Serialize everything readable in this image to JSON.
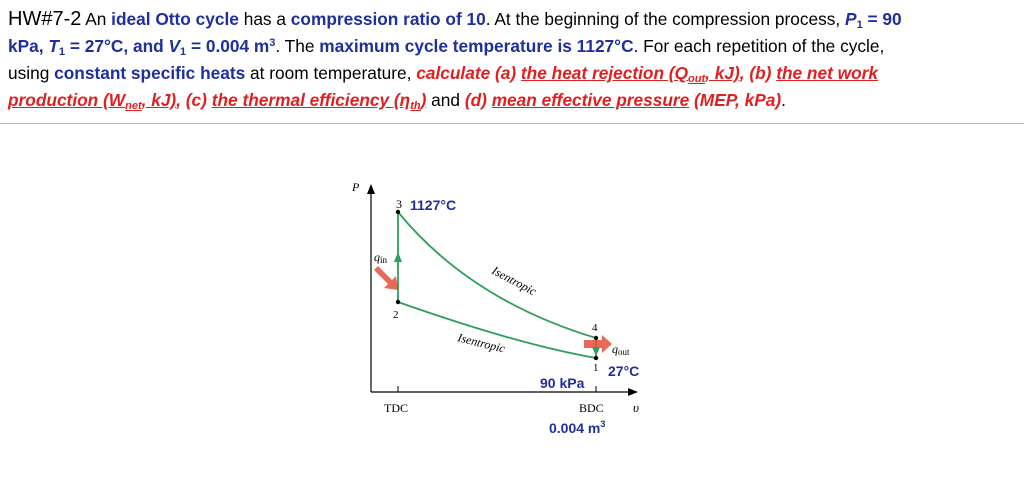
{
  "problem": {
    "heading": "HW#7-2",
    "line1": {
      "t1": " An ",
      "b1": "ideal Otto cycle",
      "t2": " has a ",
      "b2": "compression ratio of 10",
      "t3": ". At the beginning of the compression process, ",
      "p1_sym": "P",
      "p1_sub": "1",
      "p1_val": " = 90"
    },
    "line2": {
      "kpa": "kPa, ",
      "t1_sym": "T",
      "t1_sub": "1",
      "t1_val": " = 27°C, and ",
      "v1_sym": "V",
      "v1_sub": "1",
      "v1_val": " = 0.004 m",
      "v1_sup": "3",
      "t2": ". The ",
      "b1": "maximum cycle temperature is 1127°C",
      "t3": ". For each repetition of the cycle,"
    },
    "line3": {
      "t1": "using ",
      "b1": "constant specific heats",
      "t2": " at room temperature, ",
      "r1": "calculate (a) ",
      "r2": "the heat rejection (Q",
      "r2_sub": "out",
      "r3": ", kJ)",
      "r4": ", (b) ",
      "r5": "the net work"
    },
    "line4": {
      "r1": "production (W",
      "r1_sub": "net",
      "r2": ", kJ)",
      "r3": ", (c) ",
      "r4": "the thermal efficiency (",
      "eta": "η",
      "eta_sub": "th",
      "r5": ")",
      "t1": " and ",
      "r6": "(d) ",
      "r7": "mean effective pressure",
      "r8": " (MEP, kPa)",
      "end": "."
    }
  },
  "diagram": {
    "p_axis": "P",
    "v_axis": "υ",
    "tdc": "TDC",
    "bdc": "BDC",
    "q_in": "q",
    "q_in_sub": "in",
    "q_out": "q",
    "q_out_sub": "out",
    "state1": "1",
    "state2": "2",
    "state3": "3",
    "state4": "4",
    "t3_label": "1127°C",
    "isentropic_top": "Isentropic",
    "isentropic_bottom": "Isentropic",
    "p1_label": "90 kPa",
    "t1_label": "27°C",
    "v1_label": "0.004 m",
    "v1_sup": "3",
    "colors": {
      "process_line": "#2e9e5c",
      "heat_arrow": "#e0503a",
      "annotation_blue": "#1f2f9e",
      "axis": "#000000"
    }
  }
}
